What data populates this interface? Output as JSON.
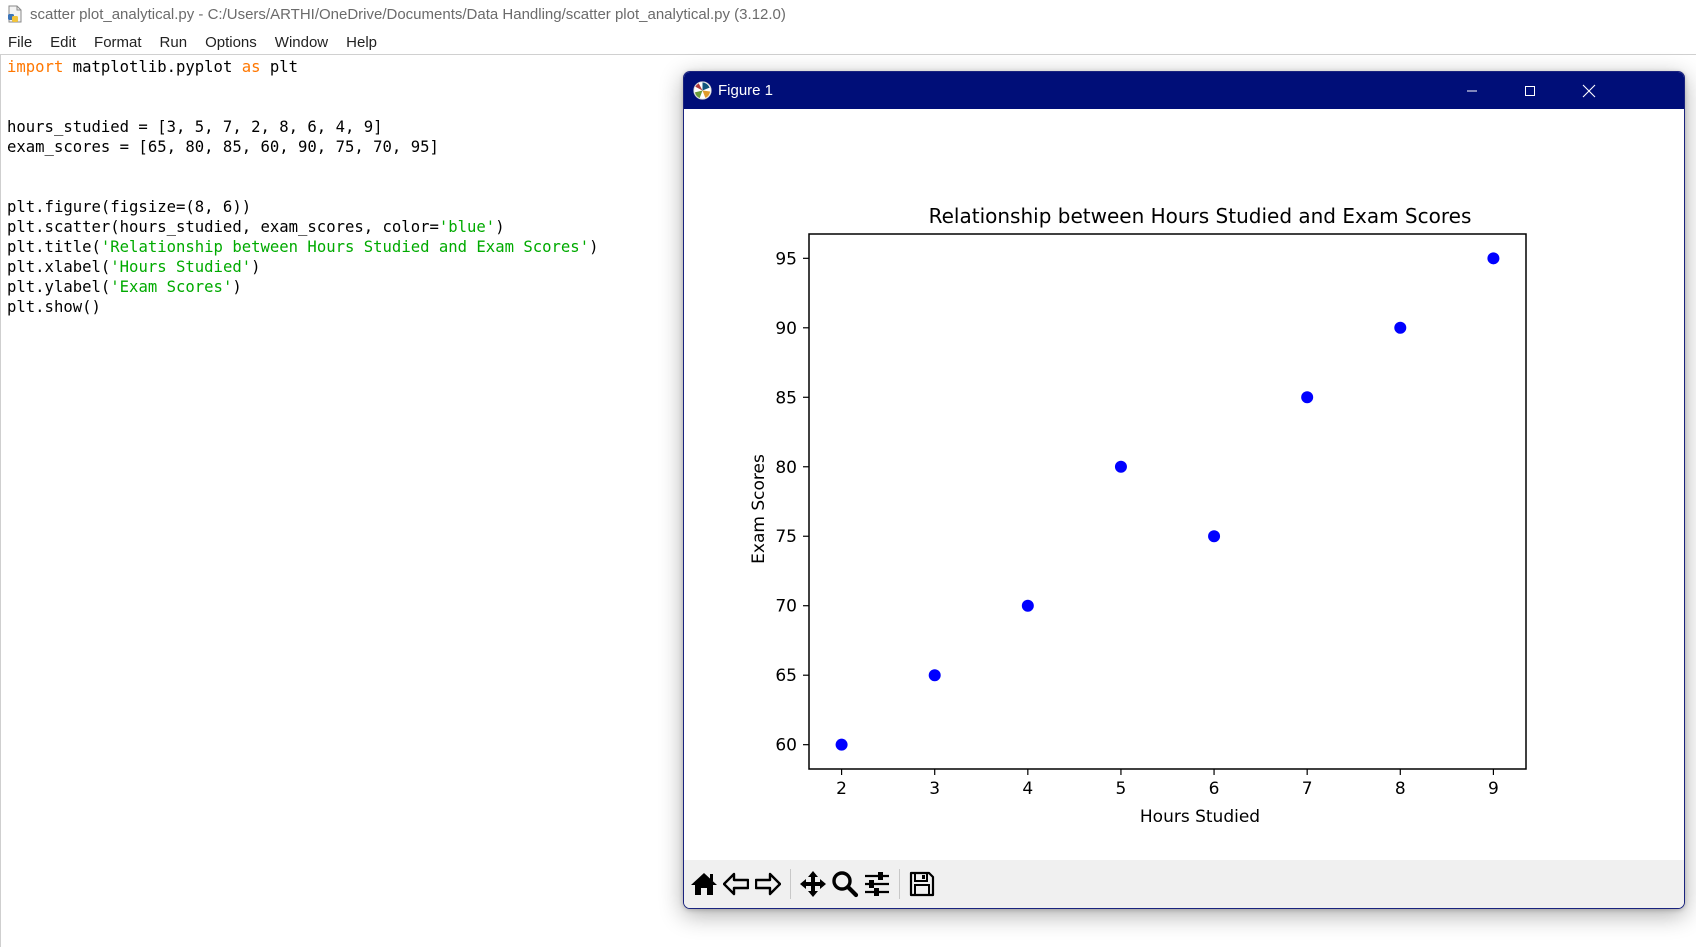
{
  "idle": {
    "title": "scatter plot_analytical.py - C:/Users/ARTHI/OneDrive/Documents/Data Handling/scatter plot_analytical.py (3.12.0)",
    "menu": [
      "File",
      "Edit",
      "Format",
      "Run",
      "Options",
      "Window",
      "Help"
    ],
    "code_lines": [
      [
        {
          "t": "import",
          "c": "kw"
        },
        {
          "t": " matplotlib.pyplot "
        },
        {
          "t": "as",
          "c": "kw"
        },
        {
          "t": " plt"
        }
      ],
      [],
      [],
      [
        {
          "t": "hours_studied = [3, 5, 7, 2, 8, 6, 4, 9]"
        }
      ],
      [
        {
          "t": "exam_scores = [65, 80, 85, 60, 90, 75, 70, 95]"
        }
      ],
      [],
      [],
      [
        {
          "t": "plt.figure(figsize=(8, 6))"
        }
      ],
      [
        {
          "t": "plt.scatter(hours_studied, exam_scores, color="
        },
        {
          "t": "'blue'",
          "c": "str"
        },
        {
          "t": ")"
        }
      ],
      [
        {
          "t": "plt.title("
        },
        {
          "t": "'Relationship between Hours Studied and Exam Scores'",
          "c": "str"
        },
        {
          "t": ")"
        }
      ],
      [
        {
          "t": "plt.xlabel("
        },
        {
          "t": "'Hours Studied'",
          "c": "str"
        },
        {
          "t": ")"
        }
      ],
      [
        {
          "t": "plt.ylabel("
        },
        {
          "t": "'Exam Scores'",
          "c": "str"
        },
        {
          "t": ")"
        }
      ],
      [
        {
          "t": "plt.show()"
        }
      ]
    ]
  },
  "figure_window": {
    "title": "Figure 1",
    "toolbar_icons": [
      "home-icon",
      "back-arrow-icon",
      "forward-arrow-icon",
      "pan-icon",
      "zoom-icon",
      "configure-subplots-icon",
      "save-icon"
    ]
  },
  "colors": {
    "titlebar": "#000e78",
    "marker": "#0000ff",
    "keyword": "#ff7700",
    "string": "#00aa00"
  },
  "chart_data": {
    "type": "scatter",
    "title": "Relationship between Hours Studied and Exam Scores",
    "xlabel": "Hours Studied",
    "ylabel": "Exam Scores",
    "x": [
      3,
      5,
      7,
      2,
      8,
      6,
      4,
      9
    ],
    "y": [
      65,
      80,
      85,
      60,
      90,
      75,
      70,
      95
    ],
    "color": "#0000ff",
    "xlim": [
      1.65,
      9.35
    ],
    "ylim": [
      58.25,
      96.75
    ],
    "xticks": [
      "2",
      "3",
      "4",
      "5",
      "6",
      "7",
      "8",
      "9"
    ],
    "yticks": [
      "60",
      "65",
      "70",
      "75",
      "80",
      "85",
      "90",
      "95"
    ],
    "grid": false
  }
}
